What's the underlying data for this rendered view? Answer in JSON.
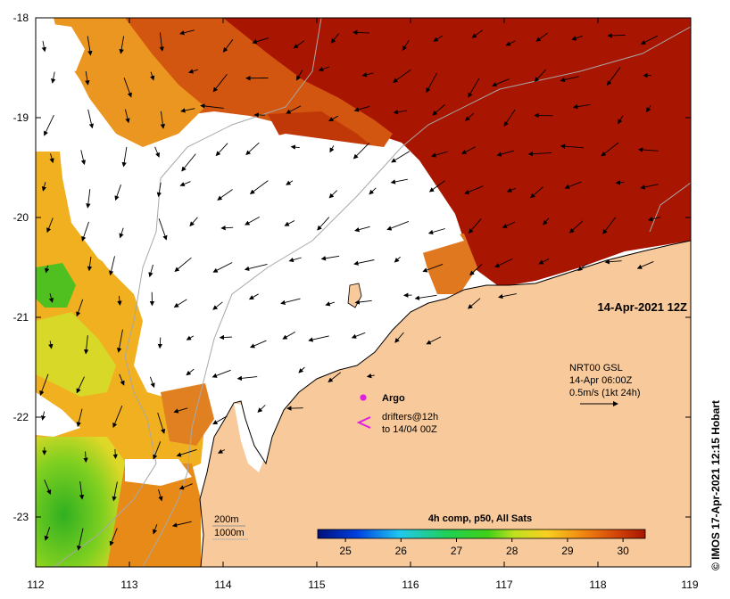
{
  "map": {
    "extent": {
      "lon": [
        112,
        119
      ],
      "lat": [
        -23.5,
        -18
      ]
    },
    "lat_ticks": [
      "-18",
      "-19",
      "-20",
      "-21",
      "-22",
      "-23"
    ],
    "lon_ticks": [
      "112",
      "113",
      "114",
      "115",
      "116",
      "117",
      "118",
      "119"
    ],
    "date_label": "14-Apr-2021 12Z",
    "legend": {
      "argo_label": "Argo",
      "drifters_line1": "drifters@12h",
      "drifters_line2": "to 14/04 00Z"
    },
    "current_info": {
      "line1": "NRT00 GSL",
      "line2": "14-Apr 06:00Z",
      "line3": "0.5m/s (1kt 24h)"
    },
    "depth_labels": [
      "200m",
      "1000m"
    ],
    "colorbar": {
      "title": "4h comp, p50, All Sats",
      "ticks": [
        "25",
        "26",
        "27",
        "28",
        "29",
        "30"
      ],
      "range": [
        24.5,
        30.4
      ]
    },
    "credit": "© IMOS 17-Apr-2021 12:15 Hobart",
    "colors": {
      "land": "#f8c99a",
      "hot": "#a81500",
      "warm": "#d85a08",
      "orange": "#f0a020",
      "yellow": "#f0dc28",
      "green": "#40c020",
      "argo": "#e020e0"
    }
  }
}
